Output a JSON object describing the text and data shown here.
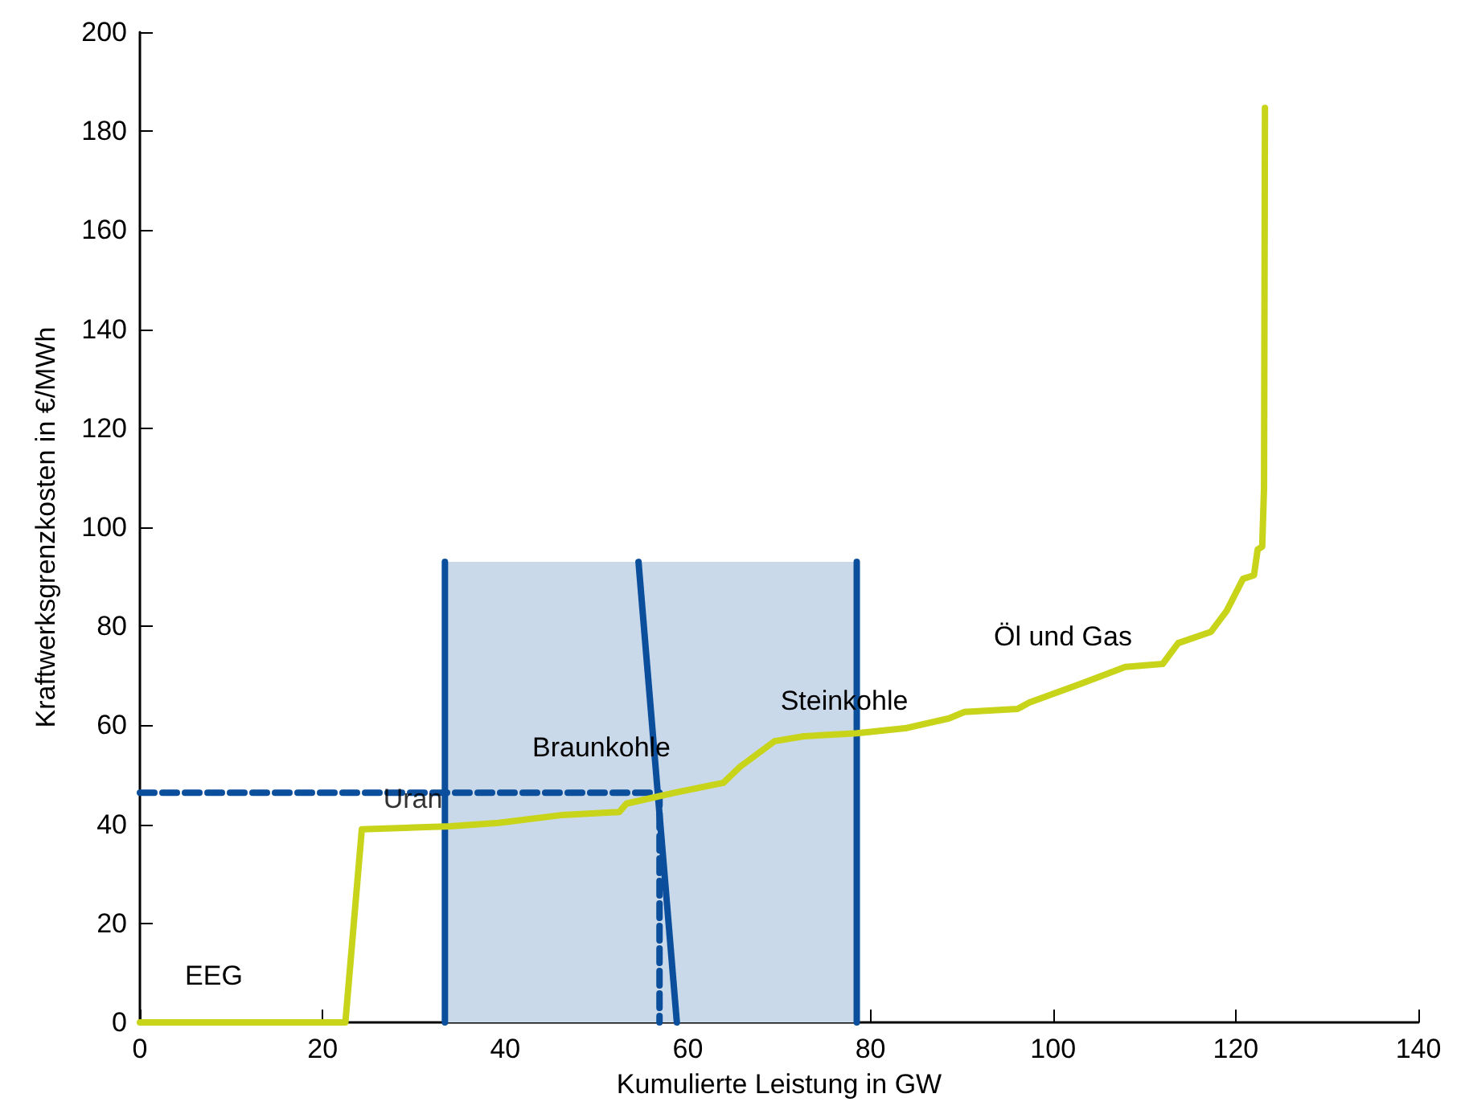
{
  "chart_data": {
    "type": "line",
    "xlabel": "Kumulierte Leistung in GW",
    "ylabel": "Kraftwerksgrenzkosten in €/MWh",
    "xlim": [
      0,
      140
    ],
    "xticks": [
      0,
      20,
      40,
      60,
      80,
      100,
      120,
      140
    ],
    "ylim": [
      0,
      200
    ],
    "yticks": [
      0,
      20,
      40,
      60,
      80,
      100,
      120,
      140,
      160,
      180,
      200
    ],
    "grid": false,
    "marker": "none",
    "series": [
      {
        "type": "area",
        "color": "#c9d9ea",
        "x": [
          33.4,
          33.4,
          78.5,
          78.5
        ],
        "values": [
          0,
          93,
          93,
          0
        ]
      },
      {
        "color": "#0b4f9c",
        "x": [
          33.4,
          33.4
        ],
        "values": [
          0,
          93
        ]
      },
      {
        "color": "#0b4f9c",
        "x": [
          78.5,
          78.5
        ],
        "values": [
          0,
          93
        ]
      },
      {
        "color": "#0b4f9c",
        "x": [
          54.6,
          58.8
        ],
        "values": [
          93,
          0
        ]
      },
      {
        "color": "#0b4f9c",
        "line_style": "dashed",
        "x": [
          0,
          56.9,
          56.9
        ],
        "values": [
          46.4,
          46.4,
          0
        ]
      },
      {
        "color": "#c8d41a",
        "x": [
          0,
          22.5,
          24.3,
          34,
          39.3,
          46.3,
          52.5,
          53.3,
          58.6,
          63.9,
          65.7,
          69.5,
          72.7,
          78.5,
          83.8,
          88.6,
          90.3,
          96.1,
          97.4,
          103.2,
          107.9,
          112,
          113.7,
          117.3,
          119,
          120.8,
          122,
          122.4,
          122.9,
          123.1,
          123.2
        ],
        "values": [
          0,
          0,
          39,
          39.6,
          40.3,
          41.9,
          42.5,
          44.2,
          46.4,
          48.4,
          51.6,
          56.8,
          57.8,
          58.4,
          59.4,
          61.4,
          62.7,
          63.3,
          64.6,
          68.5,
          71.8,
          72.4,
          76.6,
          78.9,
          83.1,
          89.6,
          90.3,
          95.5,
          96.1,
          108,
          184.7
        ]
      }
    ],
    "annotations": [
      "EEG",
      {
        "text": "Uran",
        "x": 29.9,
        "y": 46.4
      },
      "Braunkohle",
      "Steinkohle",
      "Öl und Gas"
    ]
  }
}
